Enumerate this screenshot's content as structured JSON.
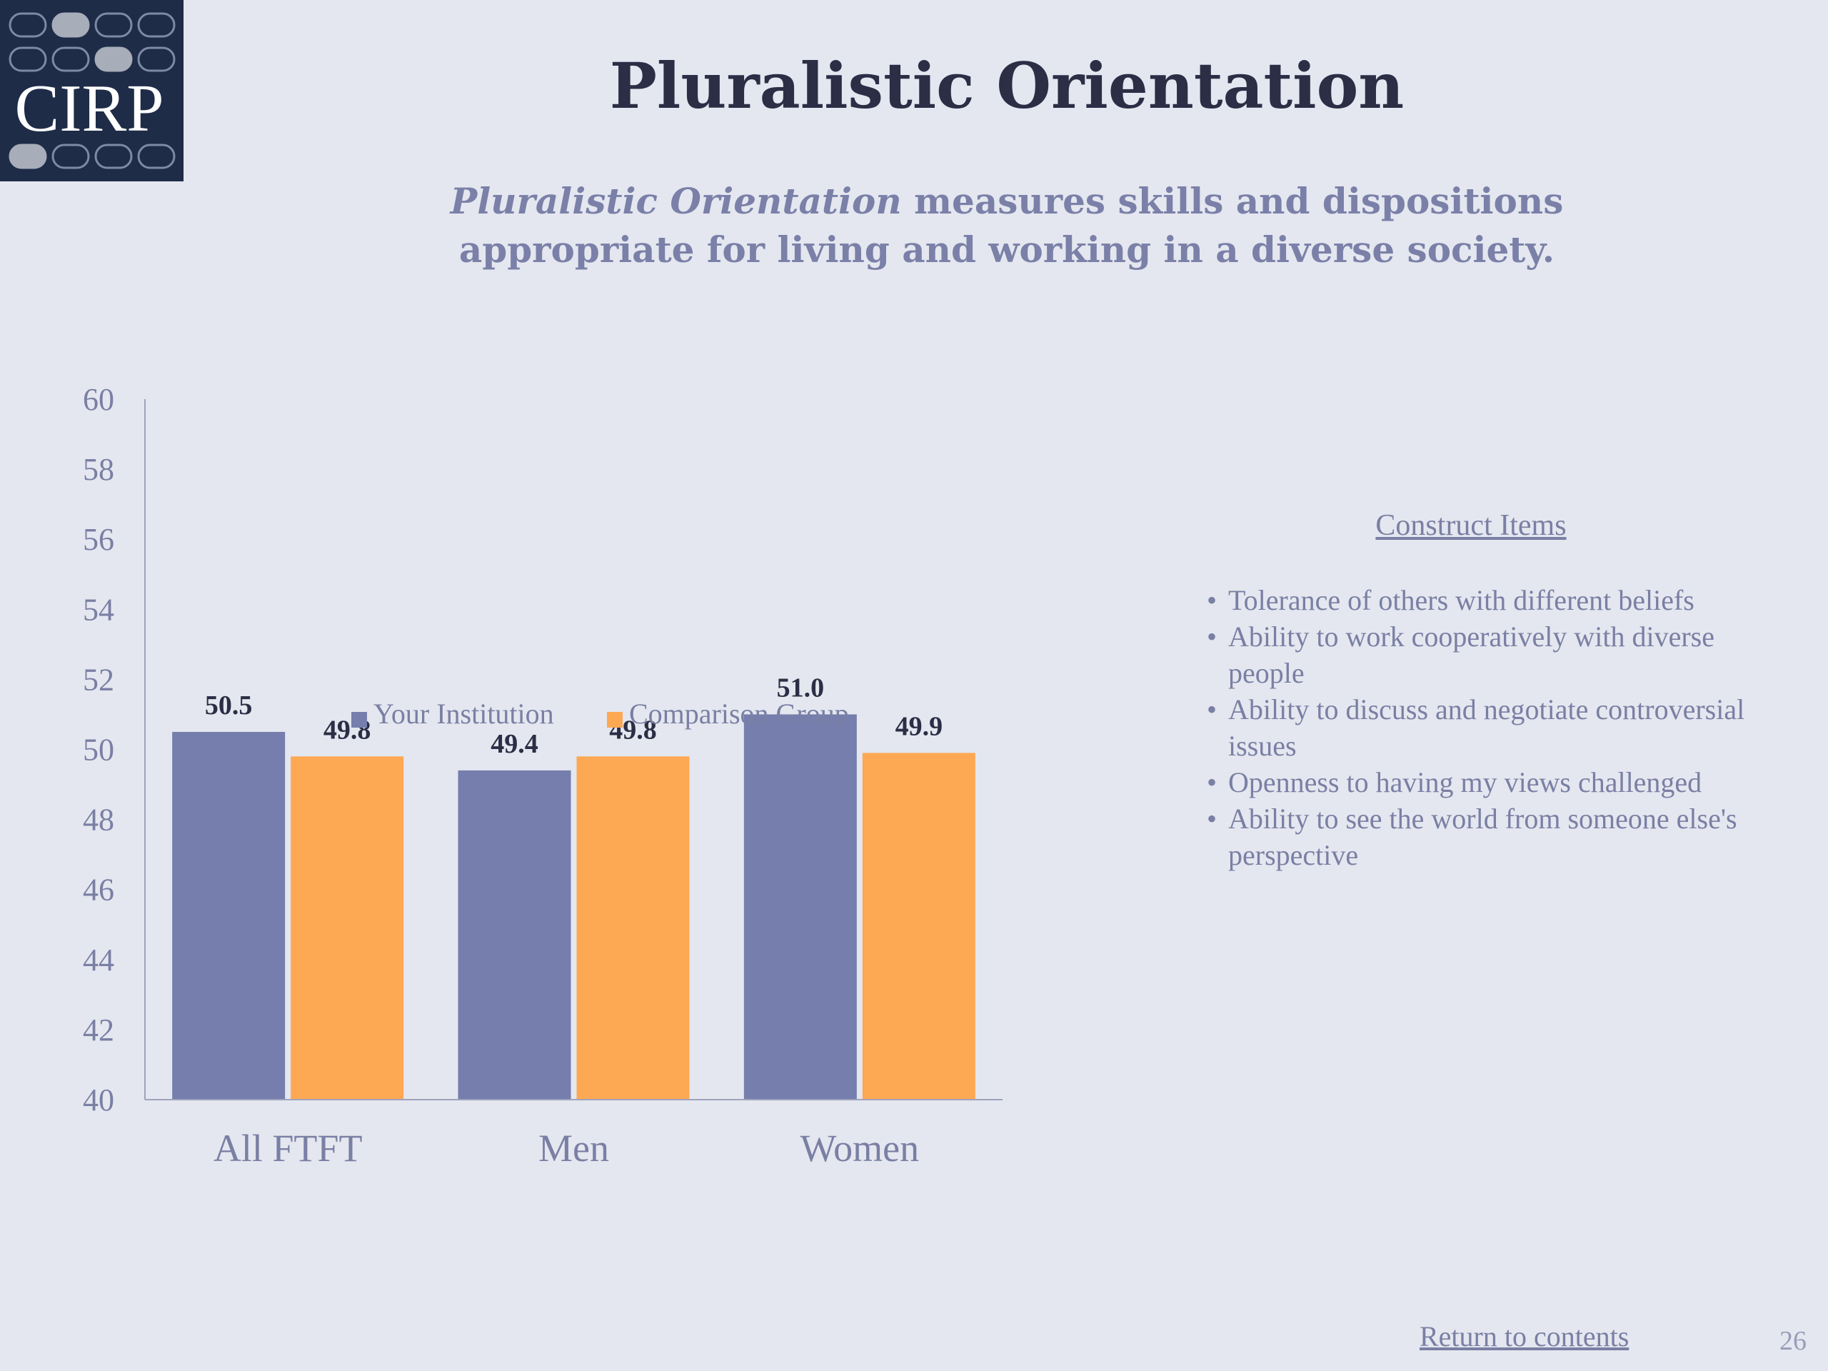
{
  "logo": {
    "text": "CIRP"
  },
  "header": {
    "title": "Pluralistic Orientation",
    "subtitle_emphasis": "Pluralistic Orientation",
    "subtitle_rest": " measures skills and dispositions appropriate for living and working in a diverse society."
  },
  "colors": {
    "your_institution": "#757ead",
    "comparison_group": "#fda853",
    "background": "#e4e7ef",
    "logo_background": "#1e2c48"
  },
  "chart_data": {
    "type": "bar",
    "categories": [
      "All FTFT",
      "Men",
      "Women"
    ],
    "series": [
      {
        "name": "Your Institution",
        "values": [
          50.5,
          49.4,
          51.0
        ],
        "labels": [
          "50.5",
          "49.4",
          "51.0"
        ]
      },
      {
        "name": "Comparison Group",
        "values": [
          49.8,
          49.8,
          49.9
        ],
        "labels": [
          "49.8",
          "49.8",
          "49.9"
        ]
      }
    ],
    "ylim": [
      40,
      60
    ],
    "yticks": [
      "40",
      "42",
      "44",
      "46",
      "48",
      "50",
      "52",
      "54",
      "56",
      "58",
      "60"
    ],
    "grid": false,
    "legend_position": "bottom"
  },
  "construct": {
    "heading": "Construct Items",
    "items": [
      "Tolerance of others with different beliefs",
      "Ability to work cooperatively with diverse people",
      "Ability to discuss and negotiate controversial issues",
      "Openness to having my views challenged",
      "Ability to see the world from someone else's perspective"
    ]
  },
  "footer": {
    "return_link": "Return to contents",
    "page_number": "26"
  }
}
